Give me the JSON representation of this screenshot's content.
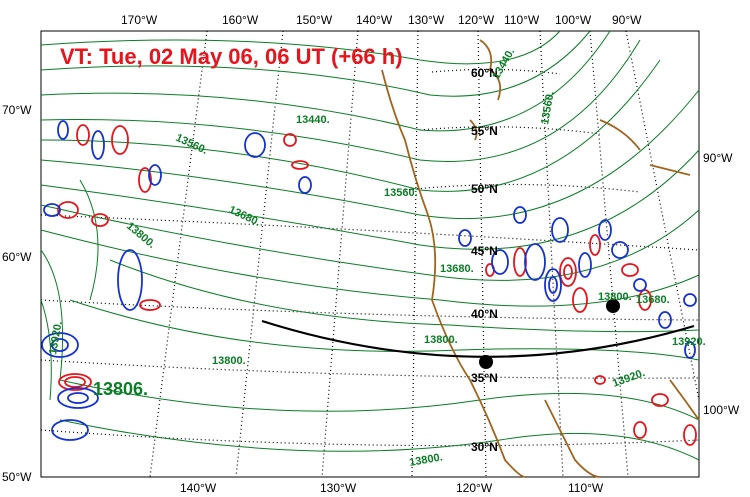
{
  "title": "VT:  Tue, 02 May 06, 06 UT (+66 h)",
  "top_lon_labels": [
    "170°W",
    "160°W",
    "150°W",
    "140°W",
    "130°W",
    "120°W",
    "110°W",
    "100°W",
    "90°W"
  ],
  "bottom_lon_labels": [
    "140°W",
    "130°W",
    "120°W",
    "110°W"
  ],
  "left_lat_labels": [
    "70°W",
    "60°W",
    "50°W"
  ],
  "right_labels": [
    "90°W",
    "100°W"
  ],
  "interior_lat_labels": [
    "60°N",
    "55°N",
    "50°N",
    "45°N",
    "40°N",
    "35°N",
    "30°N"
  ],
  "contour_labels": [
    "13440.",
    "13560.",
    "13680.",
    "13800.",
    "13440.",
    "13560.",
    "13680.",
    "13800.",
    "13560.",
    "13680.",
    "13800.",
    "13920.",
    "13800.",
    "13920.",
    "13920.",
    "13800."
  ],
  "max_label": "13806.",
  "colors": {
    "title": "#e8141c",
    "contour": "#0a7d25",
    "coast": "#a0641e",
    "positive": "#e8141c",
    "negative": "#1432d2",
    "graticule": "#000000",
    "track": "#000000"
  }
}
